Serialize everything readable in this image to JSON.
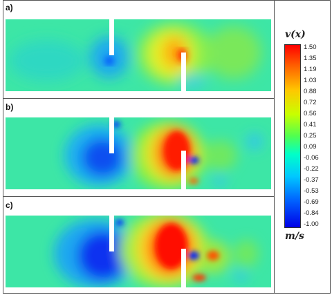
{
  "panels": [
    {
      "label": "a)"
    },
    {
      "label": "b)"
    },
    {
      "label": "c)"
    }
  ],
  "colorbar": {
    "title": "v(x)",
    "unit": "m/s",
    "ticks": [
      "1.50",
      "1.35",
      "1.19",
      "1.03",
      "0.88",
      "0.72",
      "0.56",
      "0.41",
      "0.25",
      "0.09",
      "-0.06",
      "-0.22",
      "-0.37",
      "-0.53",
      "-0.69",
      "-0.84",
      "-1.00"
    ],
    "colors": {
      "max": "#ff0000",
      "high": "#ffc800",
      "mid": "#50ff50",
      "low": "#00c8ff",
      "min": "#0000e6"
    }
  }
}
